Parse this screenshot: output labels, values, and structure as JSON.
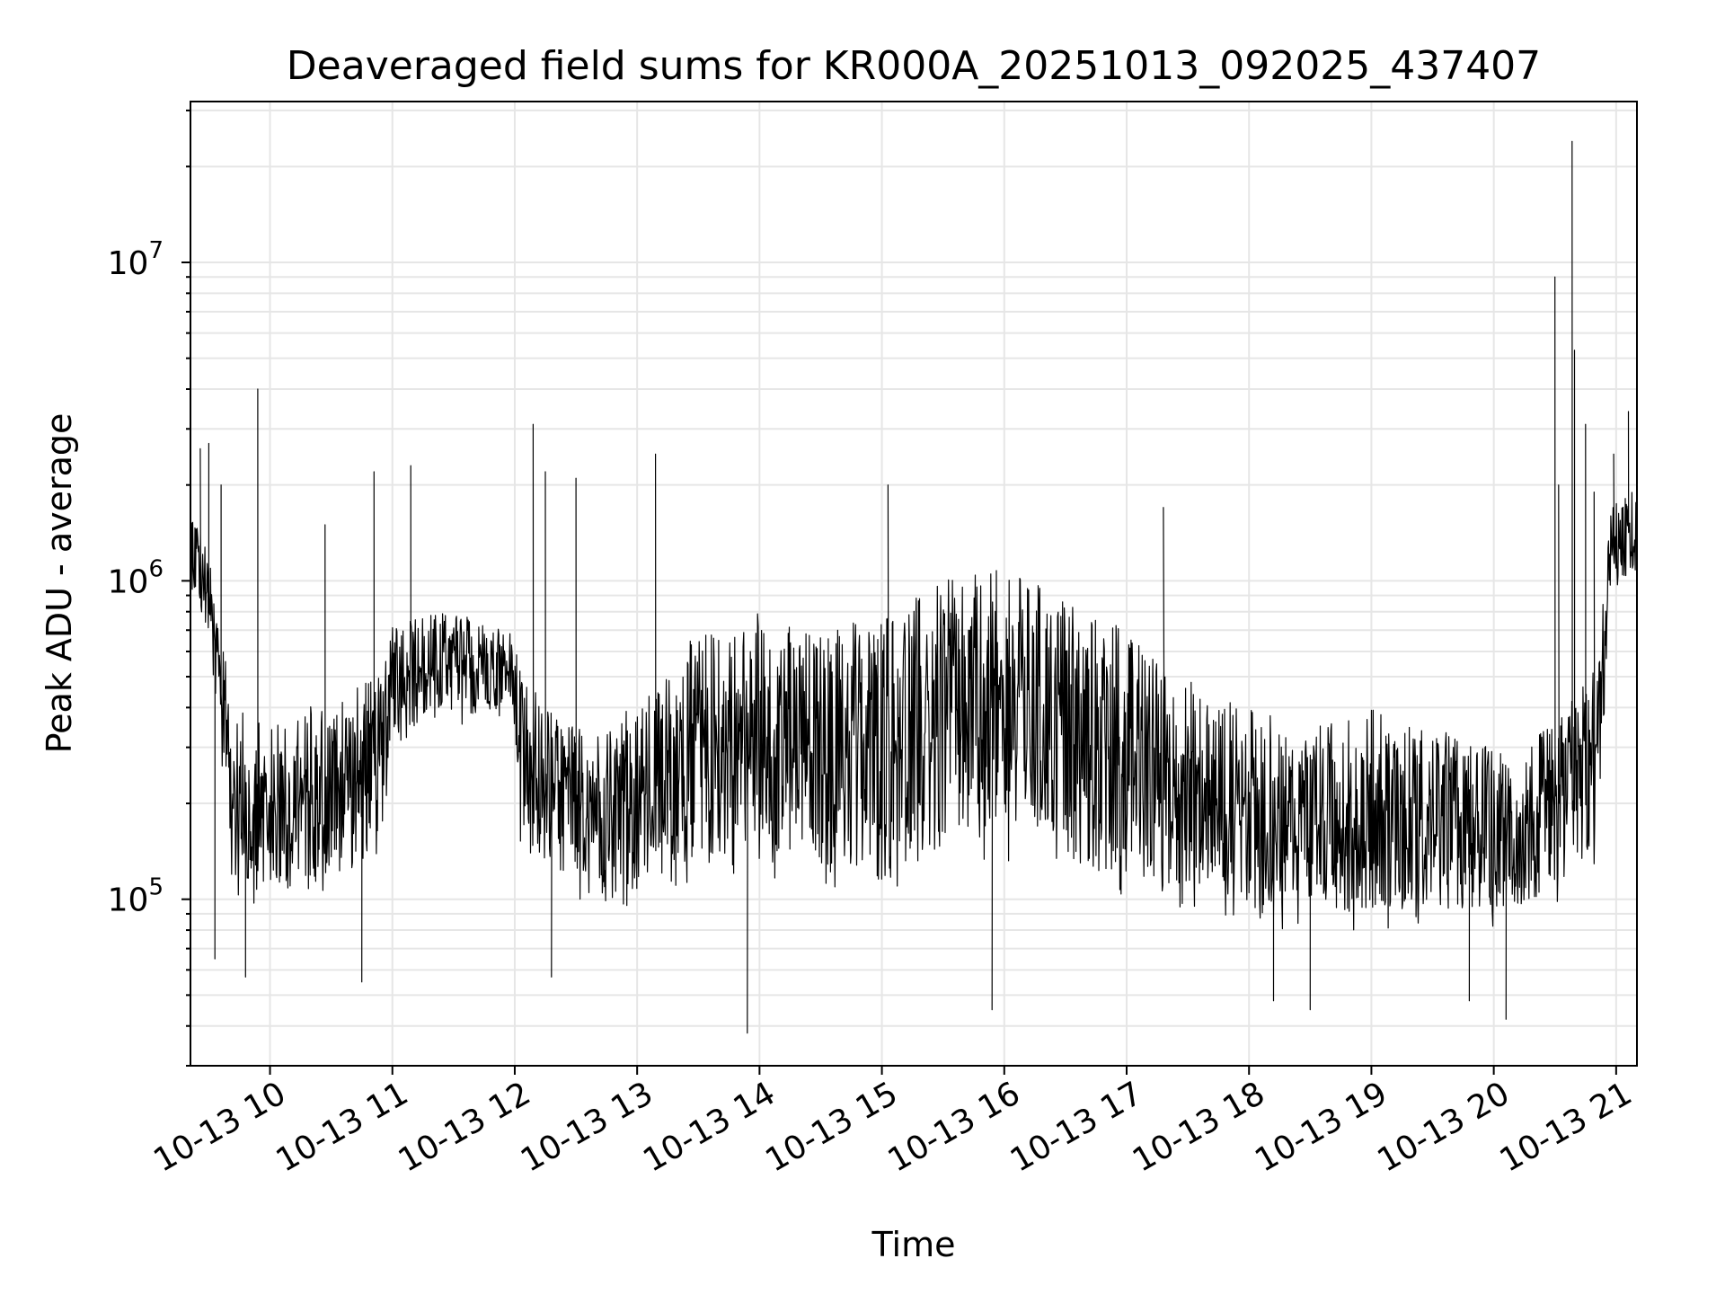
{
  "chart_data": {
    "type": "line",
    "title": "Deaveraged field sums for KR000A_20251013_092025_437407",
    "xlabel": "Time",
    "ylabel": "Peak ADU - average",
    "yscale": "log",
    "ylim": [
      30000,
      32000000
    ],
    "xlim_hours": [
      9.35,
      21.17
    ],
    "grid": true,
    "line_color": "#000000",
    "grid_color": "#e6e6e6",
    "x_ticks": [
      {
        "value": 10,
        "label": "10-13 10"
      },
      {
        "value": 11,
        "label": "10-13 11"
      },
      {
        "value": 12,
        "label": "10-13 12"
      },
      {
        "value": 13,
        "label": "10-13 13"
      },
      {
        "value": 14,
        "label": "10-13 14"
      },
      {
        "value": 15,
        "label": "10-13 15"
      },
      {
        "value": 16,
        "label": "10-13 16"
      },
      {
        "value": 17,
        "label": "10-13 17"
      },
      {
        "value": 18,
        "label": "10-13 18"
      },
      {
        "value": 19,
        "label": "10-13 19"
      },
      {
        "value": 20,
        "label": "10-13 20"
      },
      {
        "value": 21,
        "label": "10-13 21"
      }
    ],
    "y_ticks": [
      {
        "value": 100000,
        "base": "10",
        "exp": "5"
      },
      {
        "value": 1000000,
        "base": "10",
        "exp": "6"
      },
      {
        "value": 10000000,
        "base": "10",
        "exp": "7"
      }
    ],
    "envelope": {
      "hours": [
        9.35,
        9.5,
        9.7,
        10.0,
        10.5,
        10.9,
        11.0,
        11.5,
        12.0,
        12.05,
        12.5,
        13.0,
        13.5,
        14.0,
        14.5,
        15.0,
        15.5,
        16.0,
        16.5,
        17.0,
        17.5,
        18.0,
        18.5,
        19.0,
        19.5,
        20.0,
        20.5,
        20.85,
        20.95,
        21.17
      ],
      "low": [
        900000,
        600000,
        100000,
        90000,
        100000,
        130000,
        300000,
        350000,
        350000,
        120000,
        100000,
        90000,
        110000,
        120000,
        100000,
        100000,
        110000,
        130000,
        110000,
        90000,
        90000,
        80000,
        80000,
        80000,
        80000,
        80000,
        90000,
        120000,
        900000,
        1000000
      ],
      "high": [
        2000000,
        1200000,
        400000,
        350000,
        450000,
        500000,
        800000,
        800000,
        700000,
        500000,
        350000,
        400000,
        700000,
        800000,
        700000,
        800000,
        1000000,
        1100000,
        900000,
        700000,
        500000,
        400000,
        350000,
        400000,
        350000,
        300000,
        350000,
        600000,
        1700000,
        2000000
      ]
    },
    "spikes": [
      {
        "hour": 9.43,
        "value": 2600000
      },
      {
        "hour": 9.5,
        "value": 2700000
      },
      {
        "hour": 9.6,
        "value": 2000000
      },
      {
        "hour": 9.9,
        "value": 4000000
      },
      {
        "hour": 10.45,
        "value": 1500000
      },
      {
        "hour": 10.85,
        "value": 2200000
      },
      {
        "hour": 11.15,
        "value": 2300000
      },
      {
        "hour": 12.15,
        "value": 3100000
      },
      {
        "hour": 12.25,
        "value": 2200000
      },
      {
        "hour": 12.5,
        "value": 2100000
      },
      {
        "hour": 13.15,
        "value": 2500000
      },
      {
        "hour": 15.05,
        "value": 2000000
      },
      {
        "hour": 17.3,
        "value": 1700000
      },
      {
        "hour": 20.5,
        "value": 9000000
      },
      {
        "hour": 20.53,
        "value": 2000000
      },
      {
        "hour": 20.64,
        "value": 24000000
      },
      {
        "hour": 20.66,
        "value": 5300000
      },
      {
        "hour": 20.75,
        "value": 3100000
      },
      {
        "hour": 20.82,
        "value": 1900000
      },
      {
        "hour": 20.98,
        "value": 2500000
      },
      {
        "hour": 21.1,
        "value": 3400000
      },
      {
        "hour": 9.55,
        "value": 65000,
        "dir": "down"
      },
      {
        "hour": 9.8,
        "value": 57000,
        "dir": "down"
      },
      {
        "hour": 10.75,
        "value": 55000,
        "dir": "down"
      },
      {
        "hour": 12.3,
        "value": 57000,
        "dir": "down"
      },
      {
        "hour": 13.9,
        "value": 38000,
        "dir": "down"
      },
      {
        "hour": 15.9,
        "value": 45000,
        "dir": "down"
      },
      {
        "hour": 18.2,
        "value": 48000,
        "dir": "down"
      },
      {
        "hour": 18.5,
        "value": 45000,
        "dir": "down"
      },
      {
        "hour": 19.8,
        "value": 48000,
        "dir": "down"
      },
      {
        "hour": 20.1,
        "value": 42000,
        "dir": "down"
      }
    ]
  }
}
